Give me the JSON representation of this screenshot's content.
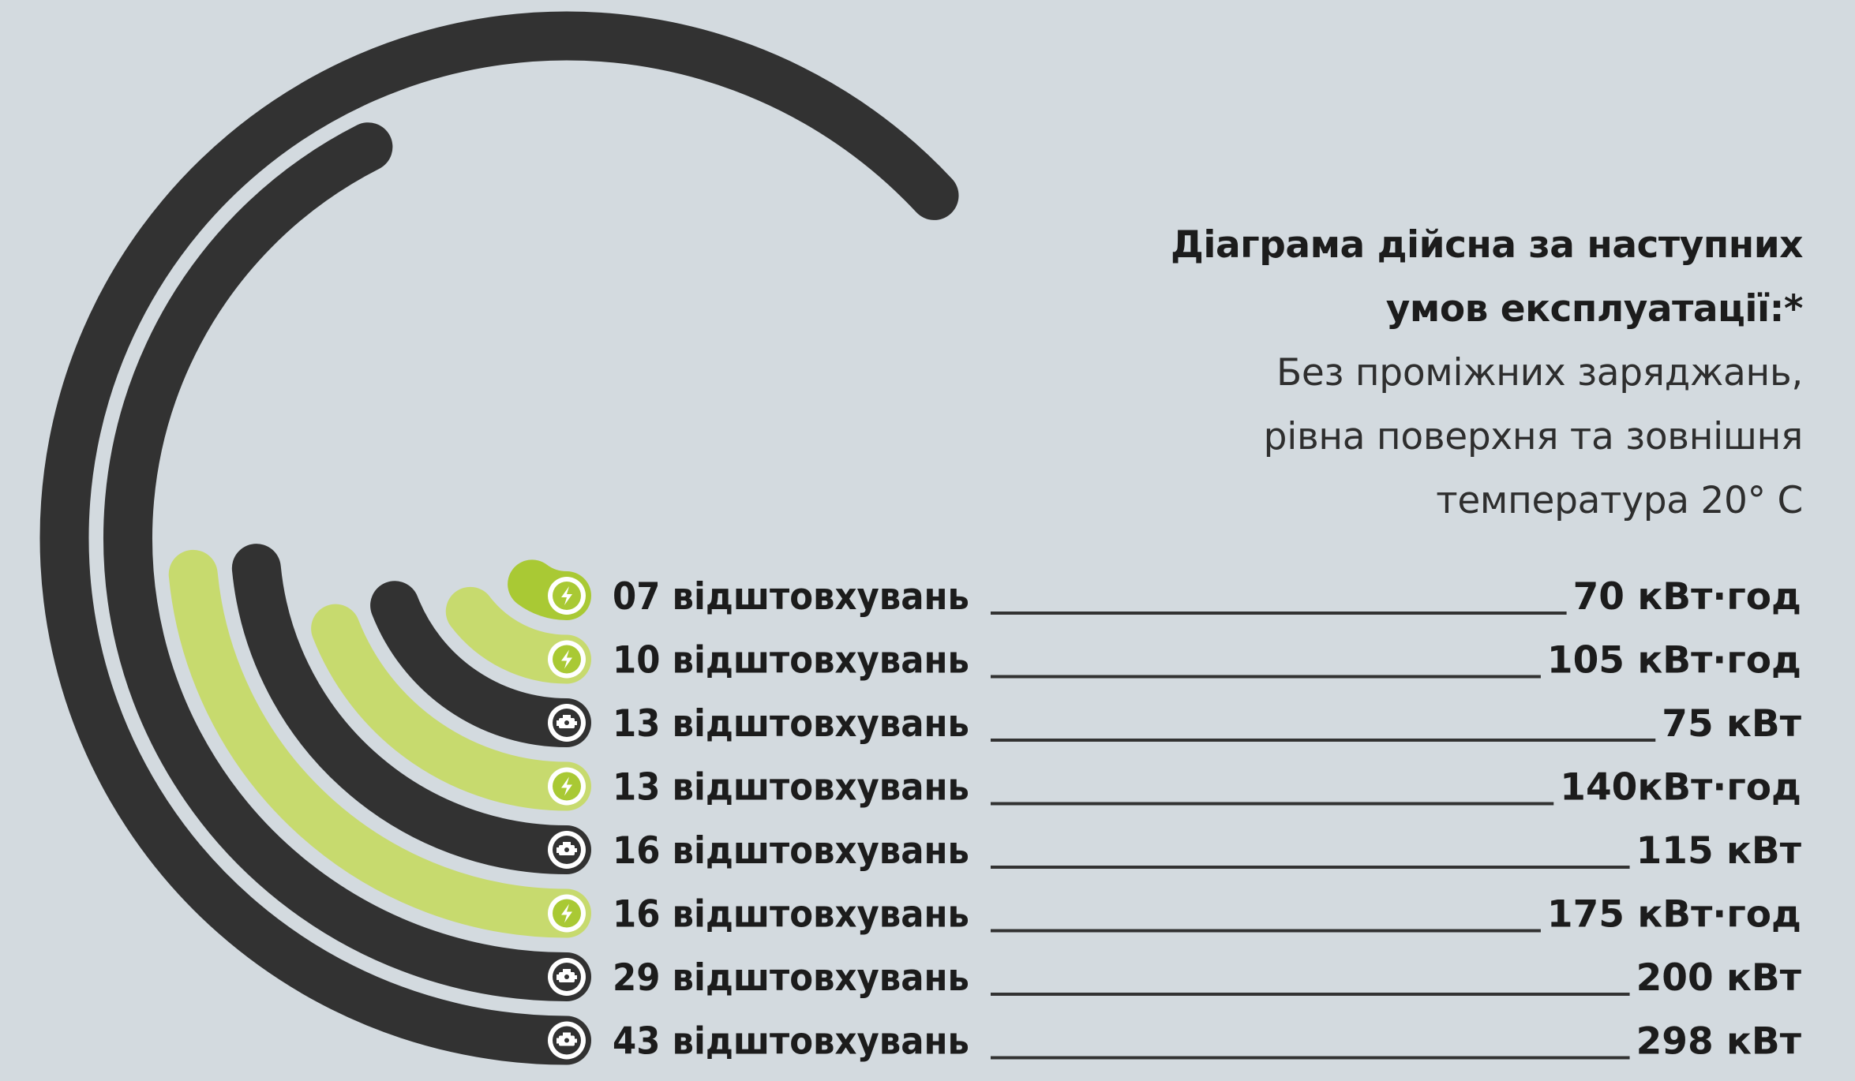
{
  "conditions": {
    "heading": [
      "Діаграма дійсна за наступних",
      "умов експлуатації:*"
    ],
    "details": [
      "Без проміжних заряджань,",
      "рівна поверхня та зовнішня",
      "температура 20° C"
    ]
  },
  "colors": {
    "background": "#d3dadf",
    "electric_ring": "#a9c934",
    "electric_ring_light": "#c7da6e",
    "engine_ring": "#323232",
    "text": "#1c1c1c"
  },
  "chart_data": {
    "type": "radial-bar",
    "title": "",
    "categories": [
      "70 кВт·год",
      "105 кВт·год",
      "75 кВт",
      "140кВт·год",
      "115 кВт",
      "175 кВт·год",
      "200 кВт",
      "298 кВт"
    ],
    "values": [
      7,
      10,
      13,
      13,
      16,
      16,
      29,
      43
    ],
    "value_labels": [
      "07 відштовхувань",
      "10 відштовхувань",
      "13 відштовхувань",
      "13 відштовхувань",
      "16 відштовхувань",
      "16 відштовхувань",
      "29 відштовхувань",
      "43 відштовхувань"
    ],
    "kinds": [
      "electric",
      "electric",
      "engine",
      "electric",
      "engine",
      "electric",
      "engine",
      "engine"
    ],
    "icons": [
      "lightning-icon",
      "lightning-icon",
      "engine-icon",
      "lightning-icon",
      "engine-icon",
      "lightning-icon",
      "engine-icon",
      "engine-icon"
    ],
    "max": 43,
    "legend": "none"
  }
}
